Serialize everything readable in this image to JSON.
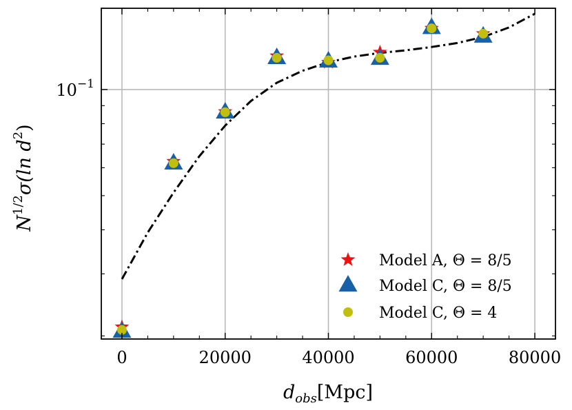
{
  "chart_data": {
    "type": "scatter",
    "yscale": "log",
    "xlim": [
      -4000,
      84000
    ],
    "ylim": [
      0.0196,
      0.17
    ],
    "x_ticks": [
      0,
      20000,
      40000,
      60000,
      80000
    ],
    "x_tick_labels": [
      "0",
      "20000",
      "40000",
      "60000",
      "80000"
    ],
    "y_major_ticks": [
      0.1
    ],
    "y_major_tick_labels": [
      "10",
      "−1"
    ],
    "y_minor_ticks": [
      0.02,
      0.03,
      0.04,
      0.05,
      0.06,
      0.07,
      0.08,
      0.09
    ],
    "xlabel": {
      "var": "d",
      "sub": "obs",
      "unit": "[Mpc]"
    },
    "ylabel": {
      "prefix": "N",
      "exp": "1/2",
      "sigma": "σ(ln ",
      "d": "d",
      "sup": "2",
      "close": ")"
    },
    "grid": true,
    "legend_position": "lower-right",
    "series": [
      {
        "name": "Model A, Θ = 8/5",
        "marker": "star",
        "color": "#ee1111",
        "x": [
          0,
          10000,
          20000,
          30000,
          40000,
          50000,
          60000,
          70000
        ],
        "y": [
          0.0212,
          0.0625,
          0.0865,
          0.1245,
          0.1194,
          0.1275,
          0.1491,
          0.144
        ]
      },
      {
        "name": "Model C, Θ = 8/5",
        "marker": "triangle",
        "color": "#1860a8",
        "x": [
          0,
          10000,
          20000,
          30000,
          40000,
          50000,
          60000,
          70000
        ],
        "y": [
          0.0206,
          0.0618,
          0.0862,
          0.123,
          0.1203,
          0.1224,
          0.1497,
          0.1415
        ]
      },
      {
        "name": "Model C, Θ = 4",
        "marker": "circle",
        "color": "#c0bf10",
        "x": [
          0,
          10000,
          20000,
          30000,
          40000,
          50000,
          60000,
          70000
        ],
        "y": [
          0.0208,
          0.0618,
          0.0862,
          0.123,
          0.121,
          0.123,
          0.1491,
          0.144
        ]
      }
    ],
    "fit_curve": {
      "style": "dash-dot",
      "color": "#000000",
      "x": [
        0,
        5000,
        10000,
        15000,
        20000,
        25000,
        30000,
        35000,
        40000,
        45000,
        50000,
        55000,
        60000,
        65000,
        70000,
        75000,
        80000
      ],
      "y": [
        0.029,
        0.0393,
        0.051,
        0.0647,
        0.079,
        0.0928,
        0.1045,
        0.113,
        0.1195,
        0.124,
        0.127,
        0.1292,
        0.132,
        0.1355,
        0.141,
        0.15,
        0.164
      ]
    }
  }
}
